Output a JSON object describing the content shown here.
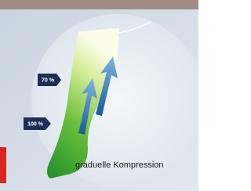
{
  "labels": {
    "upper": "70 %",
    "lower": "100 %"
  },
  "caption": "graduelle Kompression"
}
